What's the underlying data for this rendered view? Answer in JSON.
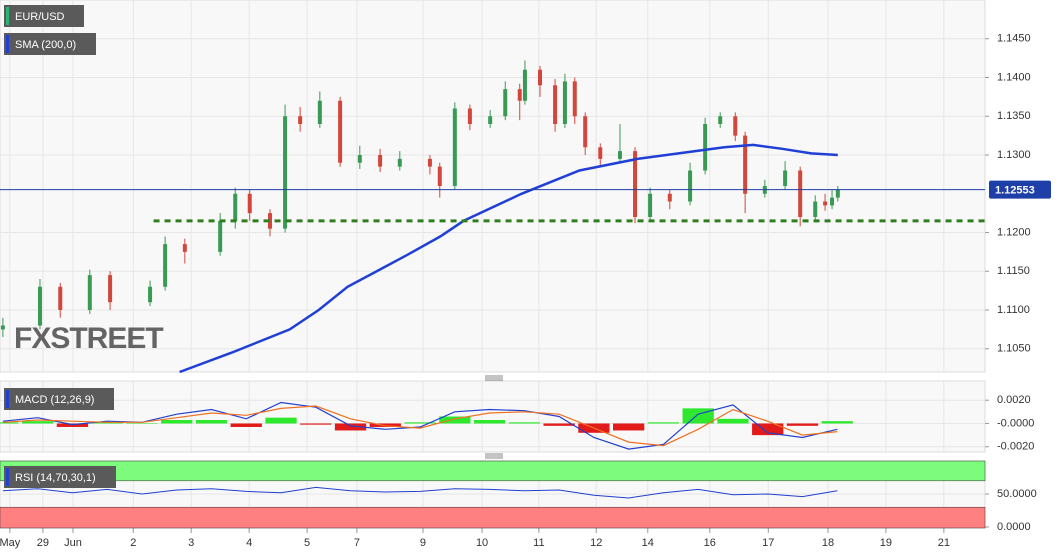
{
  "chart_data": [
    {
      "type": "candlestick",
      "title": "EUR/USD",
      "watermark": "FXSTREET",
      "x": [
        0.05,
        0.69,
        1.04,
        1.55,
        1.9,
        2.59,
        2.85,
        3.19,
        3.8,
        4.06,
        4.31,
        4.66,
        4.92,
        5.18,
        5.52,
        5.87,
        6.21,
        6.56,
        6.9,
        7.42,
        7.59,
        7.85,
        8.11,
        8.46,
        8.72,
        8.97,
        9.06,
        9.32,
        9.58,
        9.75,
        9.92,
        10.1,
        10.36,
        10.7,
        10.96,
        11.22,
        11.56,
        11.91,
        12.17,
        12.43,
        12.69,
        12.86,
        13.2,
        13.55,
        13.81,
        14.07,
        14.24,
        14.36,
        14.46
      ],
      "open": [
        1.1075,
        1.108,
        1.113,
        1.11,
        1.1145,
        1.111,
        1.113,
        1.1185,
        1.1175,
        1.1215,
        1.125,
        1.1225,
        1.1205,
        1.135,
        1.134,
        1.137,
        1.129,
        1.13,
        1.1285,
        1.1295,
        1.1285,
        1.126,
        1.136,
        1.134,
        1.135,
        1.1385,
        1.137,
        1.141,
        1.139,
        1.134,
        1.1395,
        1.135,
        1.131,
        1.1295,
        1.1305,
        1.122,
        1.125,
        1.124,
        1.128,
        1.134,
        1.135,
        1.1325,
        1.125,
        1.126,
        1.128,
        1.122,
        1.124,
        1.1235,
        1.1245
      ],
      "high": [
        1.109,
        1.114,
        1.1135,
        1.1152,
        1.115,
        1.1138,
        1.1195,
        1.1192,
        1.1225,
        1.1258,
        1.1255,
        1.123,
        1.1365,
        1.1362,
        1.1382,
        1.1375,
        1.1312,
        1.1308,
        1.1305,
        1.13,
        1.129,
        1.1368,
        1.1365,
        1.1358,
        1.1395,
        1.1392,
        1.1422,
        1.1415,
        1.1398,
        1.1405,
        1.14,
        1.1355,
        1.1315,
        1.134,
        1.131,
        1.1258,
        1.1255,
        1.129,
        1.1348,
        1.1355,
        1.1355,
        1.133,
        1.1268,
        1.1292,
        1.1285,
        1.1248,
        1.125,
        1.1255,
        1.126
      ],
      "low": [
        1.1065,
        1.1075,
        1.109,
        1.1095,
        1.11,
        1.1105,
        1.1125,
        1.116,
        1.117,
        1.1205,
        1.1215,
        1.1195,
        1.12,
        1.133,
        1.1335,
        1.1285,
        1.1282,
        1.1278,
        1.128,
        1.1275,
        1.1245,
        1.1255,
        1.1332,
        1.1335,
        1.1345,
        1.1345,
        1.1365,
        1.1375,
        1.133,
        1.1335,
        1.134,
        1.13,
        1.1285,
        1.129,
        1.1212,
        1.1215,
        1.123,
        1.1235,
        1.1275,
        1.1335,
        1.1318,
        1.1225,
        1.1245,
        1.1255,
        1.1208,
        1.1215,
        1.1228,
        1.123,
        1.124
      ],
      "close": [
        1.108,
        1.113,
        1.11,
        1.1145,
        1.111,
        1.113,
        1.1185,
        1.1175,
        1.1215,
        1.125,
        1.1225,
        1.1205,
        1.135,
        1.134,
        1.137,
        1.129,
        1.13,
        1.1285,
        1.1295,
        1.1285,
        1.126,
        1.136,
        1.134,
        1.135,
        1.1385,
        1.137,
        1.141,
        1.139,
        1.134,
        1.1395,
        1.135,
        1.131,
        1.1295,
        1.1305,
        1.122,
        1.125,
        1.124,
        1.128,
        1.134,
        1.135,
        1.1325,
        1.125,
        1.126,
        1.128,
        1.122,
        1.124,
        1.1235,
        1.1245,
        1.1255
      ],
      "up_color": "#3a9a55",
      "down_color": "#d2473b",
      "series": [
        {
          "name": "SMA (200,0)",
          "color": "#1f3fd6",
          "x": [
            3.1,
            4.0,
            5.0,
            5.5,
            6.0,
            7.0,
            7.6,
            8.0,
            9.0,
            10.0,
            11.0,
            12.0,
            12.5,
            13.0,
            13.5,
            14.0,
            14.46
          ],
          "values": [
            1.102,
            1.1045,
            1.1075,
            1.11,
            1.113,
            1.117,
            1.1195,
            1.1215,
            1.125,
            1.128,
            1.1295,
            1.1305,
            1.131,
            1.1313,
            1.1308,
            1.1302,
            1.13
          ]
        }
      ],
      "last_price": 1.12553,
      "last_price_color": "#1f3fa8",
      "support_level": 1.1215,
      "support_x": [
        2.65,
        17
      ],
      "support_color": "#2e7d1e",
      "xlim": [
        0,
        17
      ],
      "xticks": [
        {
          "value": 0.17,
          "label": "May"
        },
        {
          "value": 0.74,
          "label": "29"
        },
        {
          "value": 1.26,
          "label": "Jun"
        },
        {
          "value": 2.3,
          "label": "2"
        },
        {
          "value": 3.3,
          "label": "3"
        },
        {
          "value": 4.3,
          "label": "4"
        },
        {
          "value": 5.3,
          "label": "5"
        },
        {
          "value": 6.16,
          "label": "7"
        },
        {
          "value": 7.3,
          "label": "9"
        },
        {
          "value": 8.32,
          "label": "10"
        },
        {
          "value": 9.3,
          "label": "11"
        },
        {
          "value": 10.29,
          "label": "12"
        },
        {
          "value": 11.18,
          "label": "14"
        },
        {
          "value": 12.25,
          "label": "16"
        },
        {
          "value": 13.26,
          "label": "17"
        },
        {
          "value": 14.29,
          "label": "18"
        },
        {
          "value": 15.29,
          "label": "19"
        },
        {
          "value": 16.29,
          "label": "21"
        }
      ],
      "ylim": [
        1.102,
        1.15
      ],
      "yticks": [
        {
          "value": 1.105,
          "label": "1.1050"
        },
        {
          "value": 1.11,
          "label": "1.1100"
        },
        {
          "value": 1.115,
          "label": "1.1150"
        },
        {
          "value": 1.12,
          "label": "1.1200"
        },
        {
          "value": 1.13,
          "label": "1.1300"
        },
        {
          "value": 1.135,
          "label": "1.1350"
        },
        {
          "value": 1.14,
          "label": "1.1400"
        },
        {
          "value": 1.145,
          "label": "1.1450"
        }
      ],
      "grid": true
    },
    {
      "type": "macd",
      "title": "MACD (12,26,9)",
      "x": [
        0.05,
        0.65,
        1.25,
        1.85,
        2.45,
        3.05,
        3.65,
        4.25,
        4.85,
        5.45,
        6.05,
        6.65,
        7.25,
        7.85,
        8.45,
        9.05,
        9.65,
        10.25,
        10.85,
        11.45,
        12.05,
        12.65,
        13.25,
        13.85,
        14.45
      ],
      "series": [
        {
          "color": "#2040d0",
          "values": [
            0.0002,
            0.0005,
            -0.0001,
            0.0002,
            0.0001,
            0.0008,
            0.0012,
            0.0004,
            0.0018,
            0.0014,
            -0.0002,
            -0.0005,
            -0.0003,
            0.001,
            0.0012,
            0.0011,
            0.0006,
            -0.0012,
            -0.0022,
            -0.0018,
            0.0008,
            0.0016,
            -0.0008,
            -0.0012,
            -0.0005
          ]
        },
        {
          "color": "#f07020",
          "values": [
            0.0001,
            0.0003,
            0.0002,
            0.0001,
            0.0001,
            0.0005,
            0.0009,
            0.0007,
            0.0013,
            0.0015,
            0.0004,
            -0.0002,
            -0.0004,
            0.0004,
            0.0009,
            0.001,
            0.0008,
            -0.0004,
            -0.0016,
            -0.0019,
            -0.0005,
            0.0012,
            0.0002,
            -0.001,
            -0.0007
          ]
        }
      ],
      "histogram": {
        "values": [
          0.0001,
          0.0002,
          -0.0003,
          0.0001,
          0.0,
          0.0003,
          0.0003,
          -0.0003,
          0.0005,
          -0.0001,
          -0.0006,
          -0.0003,
          0.0001,
          0.0006,
          0.0003,
          0.0001,
          -0.0002,
          -0.0008,
          -0.0006,
          0.0001,
          0.0013,
          0.0004,
          -0.001,
          -0.0002,
          0.0002
        ],
        "up_color": "#2ee82e",
        "down_color": "#e31a1a"
      },
      "ylim": [
        -0.00245,
        0.00365
      ],
      "yticks": [
        {
          "value": 0.002,
          "label": "0.0020"
        },
        {
          "value": 0,
          "label": "-0.0000"
        },
        {
          "value": -0.002,
          "label": "-0.0020"
        }
      ]
    },
    {
      "type": "rsi",
      "title": "RSI (14,70,30,1)",
      "x": [
        0.05,
        0.65,
        1.25,
        1.85,
        2.45,
        3.05,
        3.65,
        4.25,
        4.85,
        5.45,
        6.05,
        6.65,
        7.25,
        7.85,
        8.45,
        9.05,
        9.65,
        10.25,
        10.85,
        11.45,
        12.05,
        12.65,
        13.25,
        13.85,
        14.45
      ],
      "values": [
        55,
        58,
        52,
        57,
        50,
        56,
        58,
        54,
        52,
        60,
        55,
        53,
        54,
        58,
        57,
        55,
        56,
        48,
        44,
        52,
        57,
        49,
        50,
        46,
        55
      ],
      "color": "#2040d0",
      "overbought": 70,
      "oversold": 30,
      "overbought_color": "#7dfb7d",
      "oversold_color": "#ff8080",
      "ylim": [
        -1.5,
        100
      ],
      "yticks": [
        {
          "value": 50,
          "label": "50.0000"
        },
        {
          "value": 0,
          "label": "0.0000"
        }
      ]
    }
  ]
}
